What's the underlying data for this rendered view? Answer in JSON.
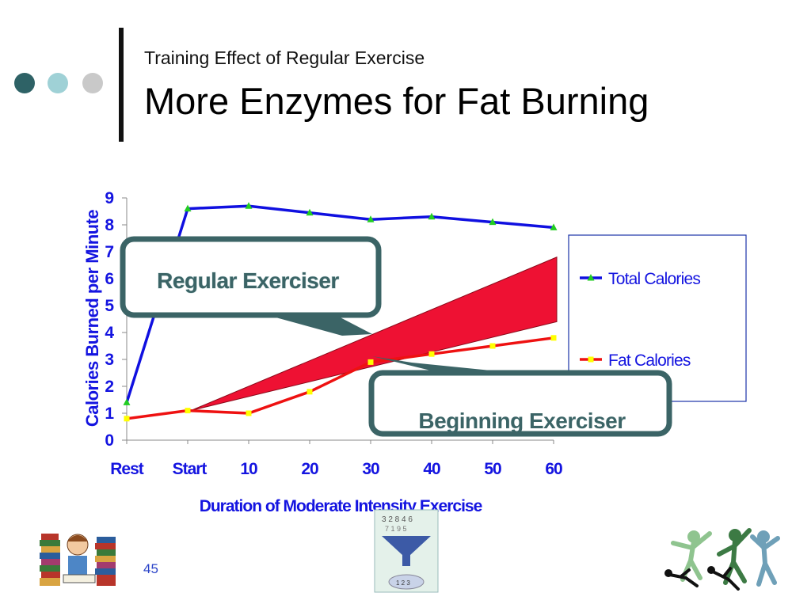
{
  "slide": {
    "subtitle": "Training Effect of Regular Exercise",
    "title": "More Enzymes for Fat Burning",
    "page_number": "45"
  },
  "colors": {
    "dot1": "#2e6266",
    "dot2": "#9fd1d6",
    "dot3": "#c9c9c9",
    "axis_text": "#1414e0",
    "total_line": "#1010e0",
    "fat_line": "#ee1111",
    "wedge": "#ee1133",
    "callout_border": "#3b6466"
  },
  "icons": [
    "student-reading-books-icon",
    "funnel-numbers-icon",
    "dancers-silhouette-icon"
  ],
  "chart_data": {
    "type": "line",
    "categories": [
      "Rest",
      "Start",
      "10",
      "20",
      "30",
      "40",
      "50",
      "60"
    ],
    "series": [
      {
        "name": "Total Calories",
        "values": [
          1.4,
          8.6,
          8.7,
          8.45,
          8.2,
          8.3,
          8.1,
          7.9
        ]
      },
      {
        "name": "Fat Calories",
        "values": [
          0.8,
          1.1,
          1.0,
          1.8,
          2.9,
          3.2,
          3.5,
          3.8
        ]
      }
    ],
    "ylim": [
      0,
      9
    ],
    "yticks": [
      "0",
      "1",
      "2",
      "3",
      "4",
      "5",
      "6",
      "7",
      "8",
      "9"
    ],
    "xlabel": "Duration of Moderate Intensity Exercise",
    "ylabel": "Calories Burned per Minute",
    "legend_position": "right",
    "annotations": [
      "Regular Exerciser",
      "Beginning Exerciser"
    ]
  }
}
